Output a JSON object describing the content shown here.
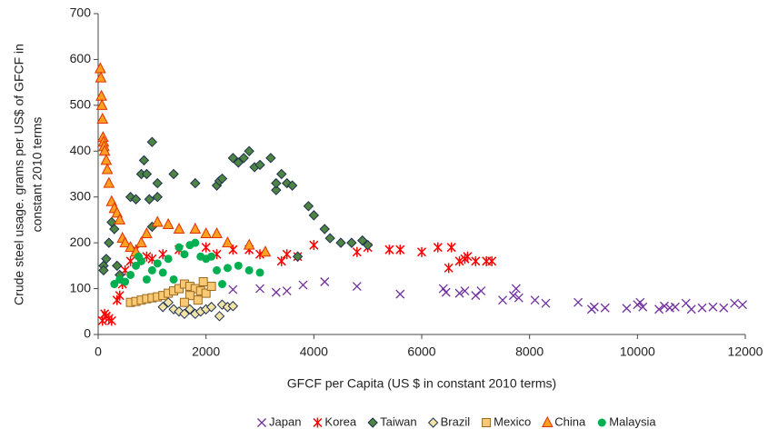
{
  "chart_data": {
    "type": "scatter",
    "xlabel": "GFCF per Capita (US $ in constant 2010 terms)",
    "ylabel": [
      "Crude steel usage. grams per US$ of GFCF in",
      "constant 2010 terms"
    ],
    "xlim": [
      0,
      12000
    ],
    "ylim": [
      0,
      700
    ],
    "xticks": [
      0,
      2000,
      4000,
      6000,
      8000,
      10000,
      12000
    ],
    "yticks": [
      0,
      100,
      200,
      300,
      400,
      500,
      600,
      700
    ],
    "grid": false,
    "legend": "bottom",
    "series": [
      {
        "name": "Japan",
        "marker": "x",
        "color": "#7030a0",
        "x": [
          2500,
          3000,
          3300,
          3500,
          3800,
          4200,
          4800,
          5600,
          6400,
          6450,
          6700,
          6800,
          7000,
          7100,
          7500,
          7700,
          7750,
          7800,
          8100,
          8300,
          8900,
          9150,
          9200,
          9400,
          9800,
          10000,
          10050,
          10100,
          10400,
          10500,
          10600,
          10700,
          10900,
          11000,
          11200,
          11400,
          11600,
          11800,
          11950
        ],
        "values": [
          98,
          100,
          92,
          95,
          108,
          115,
          105,
          88,
          100,
          92,
          90,
          95,
          85,
          95,
          75,
          85,
          100,
          80,
          75,
          68,
          70,
          55,
          60,
          58,
          57,
          65,
          70,
          60,
          55,
          62,
          58,
          60,
          68,
          55,
          58,
          60,
          58,
          68,
          65
        ]
      },
      {
        "name": "Korea",
        "marker": "star",
        "color": "#ff0000",
        "x": [
          80,
          120,
          150,
          200,
          250,
          350,
          400,
          450,
          500,
          600,
          700,
          900,
          1000,
          1200,
          1500,
          2000,
          2200,
          2500,
          2800,
          3000,
          3400,
          3500,
          3700,
          4000,
          4800,
          5000,
          5400,
          5600,
          6000,
          6300,
          6500,
          6550,
          6700,
          6800,
          6850,
          7000,
          7200,
          7300
        ],
        "values": [
          30,
          45,
          40,
          35,
          30,
          75,
          85,
          110,
          140,
          160,
          185,
          170,
          165,
          175,
          185,
          190,
          175,
          185,
          185,
          175,
          160,
          175,
          170,
          195,
          180,
          190,
          185,
          185,
          180,
          190,
          145,
          190,
          160,
          165,
          170,
          160,
          160,
          160
        ]
      },
      {
        "name": "Taiwan",
        "marker": "diamond",
        "color": "#4e8542",
        "x": [
          100,
          100,
          150,
          200,
          250,
          300,
          350,
          400,
          600,
          700,
          800,
          850,
          900,
          950,
          1000,
          1100,
          1000,
          1400,
          1800,
          2200,
          2250,
          2300,
          2500,
          2600,
          2700,
          2800,
          2900,
          3000,
          3200,
          3300,
          3300,
          3400,
          3500,
          3600,
          3700,
          3900,
          4000,
          4200,
          4300,
          4500,
          4700,
          4900,
          5000,
          1100
        ],
        "values": [
          150,
          140,
          165,
          200,
          245,
          230,
          150,
          130,
          300,
          295,
          350,
          380,
          350,
          295,
          420,
          300,
          235,
          350,
          330,
          325,
          335,
          340,
          385,
          375,
          385,
          400,
          365,
          370,
          385,
          315,
          330,
          350,
          330,
          325,
          170,
          280,
          260,
          230,
          210,
          200,
          200,
          205,
          195,
          330
        ]
      },
      {
        "name": "Brazil",
        "marker": "diamond",
        "color": "#f2e3a6",
        "x": [
          1200,
          1300,
          1400,
          1500,
          1600,
          1700,
          1800,
          1900,
          2000,
          2100,
          2250,
          2300,
          2400,
          2500
        ],
        "values": [
          60,
          70,
          55,
          50,
          45,
          55,
          45,
          50,
          55,
          60,
          40,
          65,
          60,
          62
        ]
      },
      {
        "name": "Mexico",
        "marker": "square",
        "color": "#f9c974",
        "x": [
          600,
          700,
          800,
          900,
          1000,
          1100,
          1200,
          1300,
          1400,
          1500,
          1600,
          1700,
          1800,
          1900,
          2000,
          2100,
          1950,
          1850,
          1700,
          1600
        ],
        "values": [
          70,
          72,
          75,
          78,
          80,
          82,
          85,
          90,
          95,
          100,
          110,
          105,
          100,
          95,
          90,
          105,
          115,
          75,
          85,
          70
        ]
      },
      {
        "name": "China",
        "marker": "triangle",
        "color": "#ffa020",
        "x": [
          40,
          50,
          60,
          70,
          80,
          90,
          100,
          110,
          120,
          150,
          170,
          200,
          250,
          300,
          350,
          400,
          450,
          500,
          600,
          700,
          800,
          900,
          1100,
          1300,
          1500,
          1800,
          2000,
          2200,
          2400,
          2800,
          3100
        ],
        "values": [
          580,
          560,
          520,
          500,
          470,
          430,
          420,
          410,
          400,
          380,
          360,
          330,
          290,
          275,
          265,
          250,
          210,
          200,
          190,
          180,
          200,
          220,
          245,
          240,
          230,
          230,
          220,
          220,
          200,
          195,
          180
        ]
      },
      {
        "name": "Malaysia",
        "marker": "circle",
        "color": "#00b050",
        "x": [
          300,
          400,
          500,
          600,
          700,
          750,
          800,
          900,
          1000,
          1100,
          1200,
          1300,
          1500,
          1600,
          1700,
          1800,
          1900,
          2000,
          2100,
          2200,
          2400,
          2600,
          2800,
          3000,
          2300,
          1400
        ],
        "values": [
          110,
          120,
          115,
          130,
          150,
          170,
          160,
          120,
          140,
          155,
          135,
          165,
          190,
          175,
          195,
          200,
          170,
          165,
          170,
          140,
          145,
          150,
          140,
          135,
          110,
          120
        ]
      }
    ]
  }
}
